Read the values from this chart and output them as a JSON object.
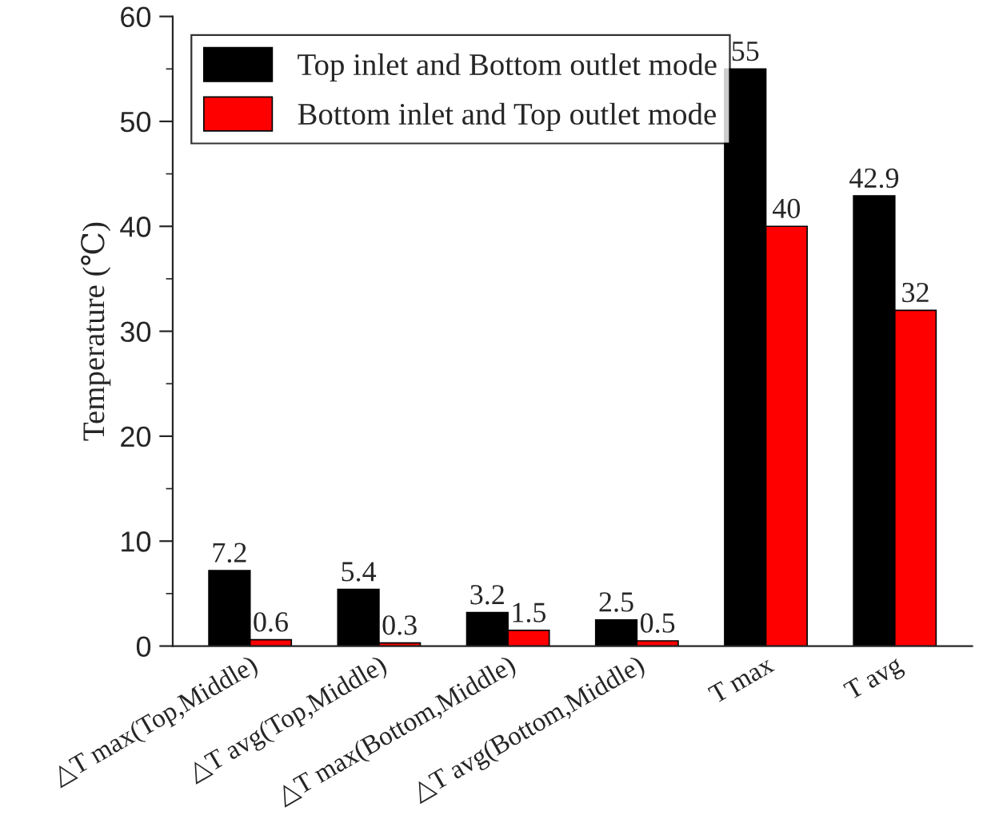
{
  "chart_data": {
    "type": "bar",
    "ylabel": "Temperature (℃)",
    "categories": [
      "△T max(Top,Middle)",
      "△T avg(Top,Middle)",
      "△T max(Bottom,Middle)",
      "△T avg(Bottom,Middle)",
      "T max",
      "T avg"
    ],
    "series": [
      {
        "name": "Top inlet and Bottom outlet mode",
        "color": "#000000",
        "values": [
          7.2,
          5.4,
          3.2,
          2.5,
          55,
          42.9
        ]
      },
      {
        "name": "Bottom inlet and Top outlet mode",
        "color": "#ff0000",
        "values": [
          0.6,
          0.3,
          1.5,
          0.5,
          40,
          32
        ]
      }
    ],
    "ylim": [
      0,
      60
    ],
    "yticks": [
      0,
      10,
      20,
      30,
      40,
      50,
      60
    ],
    "data_labels": true,
    "legend": "top left",
    "grid": false
  }
}
